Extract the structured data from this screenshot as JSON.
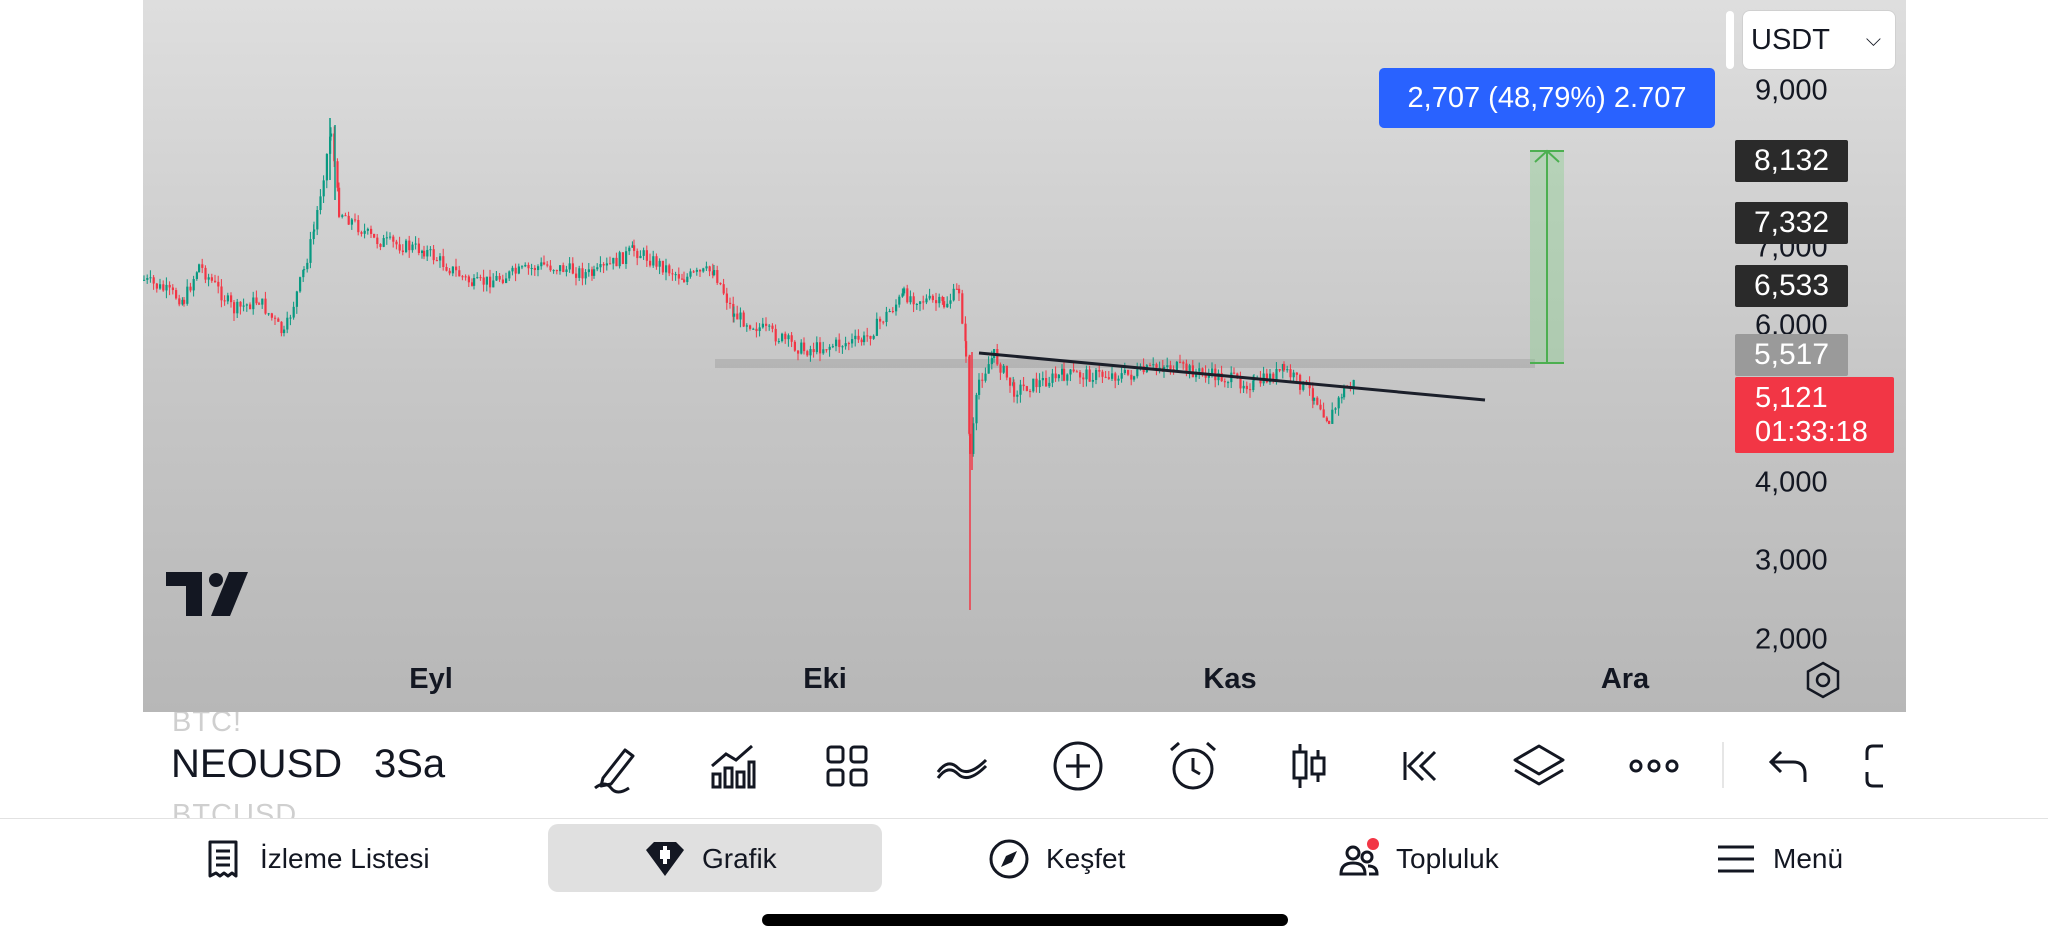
{
  "chart": {
    "time_labels": [
      "Eyl",
      "Eki",
      "Kas",
      "Ara"
    ],
    "price_ticks": [
      "9,000",
      "7,000",
      "6,000",
      "4,000",
      "3,000",
      "2,000"
    ],
    "price_tags": {
      "t8132": "8,132",
      "t7332": "7,332",
      "t6533": "6,533",
      "t5517": "5,517",
      "current_price": "5,121",
      "countdown": "01:33:18"
    },
    "measure_label": "2,707 (48,79%) 2.707",
    "currency": "USDT",
    "colors": {
      "up": "#089981",
      "down": "#f23645",
      "measure": "#2962ff",
      "range_green": "#4caf50"
    }
  },
  "toolbar": {
    "ghost_top": "BTC!",
    "ticker": "NEOUSD",
    "ghost_bottom": "BTCUSD",
    "interval": "3Sa",
    "icons": [
      "pencil-icon",
      "indicators-icon",
      "layout-grid-icon",
      "drawing-lines-icon",
      "add-circle-icon",
      "alarm-icon",
      "candlestick-icon",
      "replay-icon",
      "layers-icon",
      "more-icon",
      "undo-icon",
      "fullscreen-icon"
    ]
  },
  "nav": {
    "watchlist": "İzleme Listesi",
    "chart": "Grafik",
    "explore": "Keşfet",
    "community": "Topluluk",
    "menu": "Menü"
  }
}
